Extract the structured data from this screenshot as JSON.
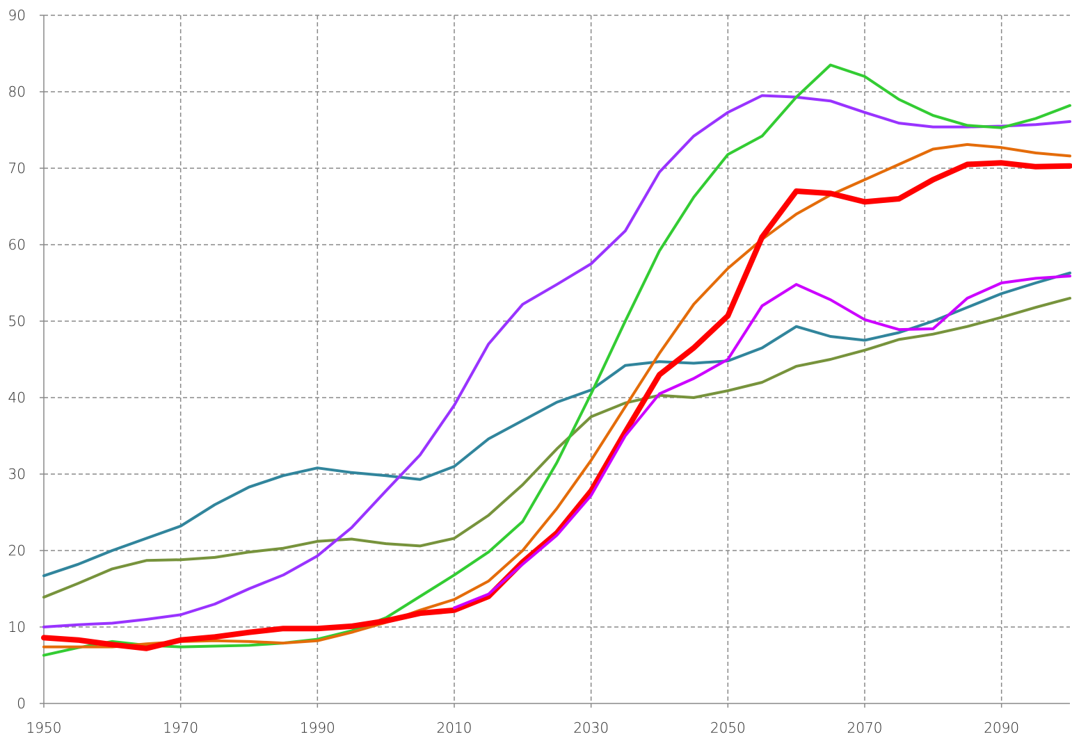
{
  "chart_data": {
    "type": "line",
    "x": [
      1950,
      1955,
      1960,
      1965,
      1970,
      1975,
      1980,
      1985,
      1990,
      1995,
      2000,
      2005,
      2010,
      2015,
      2020,
      2025,
      2030,
      2035,
      2040,
      2045,
      2050,
      2055,
      2060,
      2065,
      2070,
      2075,
      2080,
      2085,
      2090,
      2095,
      2100
    ],
    "series": [
      {
        "color": "#77933c",
        "linewidth": 4,
        "values": [
          13.9,
          15.7,
          17.6,
          18.7,
          18.8,
          19.1,
          19.8,
          20.3,
          21.2,
          21.5,
          20.9,
          20.6,
          21.6,
          24.6,
          28.6,
          33.3,
          37.5,
          39.3,
          40.3,
          40,
          40.9,
          42,
          44.1,
          45,
          46.2,
          47.6,
          48.3,
          49.3,
          50.5,
          51.8,
          53
        ]
      },
      {
        "color": "#31859c",
        "linewidth": 4,
        "values": [
          16.7,
          18.2,
          20,
          21.6,
          23.2,
          26,
          28.3,
          29.8,
          30.8,
          30.2,
          29.8,
          29.3,
          31,
          34.6,
          37,
          39.4,
          41,
          44.2,
          44.7,
          44.5,
          44.8,
          46.5,
          49.3,
          48,
          47.5,
          48.5,
          50,
          51.8,
          53.6,
          55,
          56.3
        ]
      },
      {
        "color": "#9933ff",
        "linewidth": 4,
        "values": [
          10,
          10.3,
          10.5,
          11,
          11.6,
          13,
          15,
          16.8,
          19.3,
          23,
          27.8,
          32.5,
          39,
          47,
          52.2,
          54.8,
          57.5,
          61.8,
          69.5,
          74.2,
          77.3,
          79.5,
          79.3,
          78.8,
          77.3,
          75.9,
          75.4,
          75.4,
          75.5,
          75.7,
          76.1
        ]
      },
      {
        "color": "#33cc33",
        "linewidth": 4,
        "values": [
          6.3,
          7.3,
          8.1,
          7.6,
          7.4,
          7.5,
          7.6,
          7.9,
          8.4,
          9.5,
          11.2,
          14,
          16.8,
          19.8,
          23.8,
          31.5,
          40.5,
          50,
          59.2,
          66.2,
          71.8,
          74.2,
          79.3,
          83.5,
          82,
          79,
          76.9,
          75.6,
          75.3,
          76.5,
          78.2
        ]
      },
      {
        "color": "#e46c0a",
        "linewidth": 4,
        "values": [
          7.4,
          7.4,
          7.4,
          7.8,
          8.1,
          8.2,
          8.1,
          7.9,
          8.2,
          9.3,
          10.6,
          12.2,
          13.6,
          16,
          20,
          25.5,
          31.8,
          38.8,
          45.8,
          52.2,
          56.9,
          60.7,
          64,
          66.5,
          68.5,
          70.5,
          72.5,
          73.1,
          72.7,
          72,
          71.6
        ]
      },
      {
        "color": "#ff0000",
        "linewidth": 8,
        "values": [
          8.6,
          8.3,
          7.7,
          7.2,
          8.3,
          8.7,
          9.3,
          9.8,
          9.8,
          10.1,
          10.8,
          11.8,
          12.2,
          14,
          18.5,
          22.3,
          27.8,
          35.5,
          43,
          46.5,
          50.7,
          61,
          67,
          66.7,
          65.6,
          66,
          68.5,
          70.5,
          70.7,
          70.2,
          70.3
        ]
      },
      {
        "color": "#cc00ff",
        "linewidth": 4,
        "values": [
          null,
          null,
          null,
          null,
          null,
          null,
          null,
          null,
          null,
          null,
          null,
          null,
          12.5,
          14.3,
          18.2,
          22,
          27.2,
          35,
          40.5,
          42.5,
          45,
          52,
          54.8,
          52.8,
          50.2,
          48.9,
          49,
          53,
          55,
          55.6,
          55.9
        ]
      }
    ],
    "xlim": [
      1950,
      2100
    ],
    "xticks": [
      1950,
      1970,
      1990,
      2010,
      2030,
      2050,
      2070,
      2090
    ],
    "ylim": [
      0,
      90
    ],
    "yticks": [
      0,
      10,
      20,
      30,
      40,
      50,
      60,
      70,
      80,
      90
    ],
    "grid": true
  }
}
